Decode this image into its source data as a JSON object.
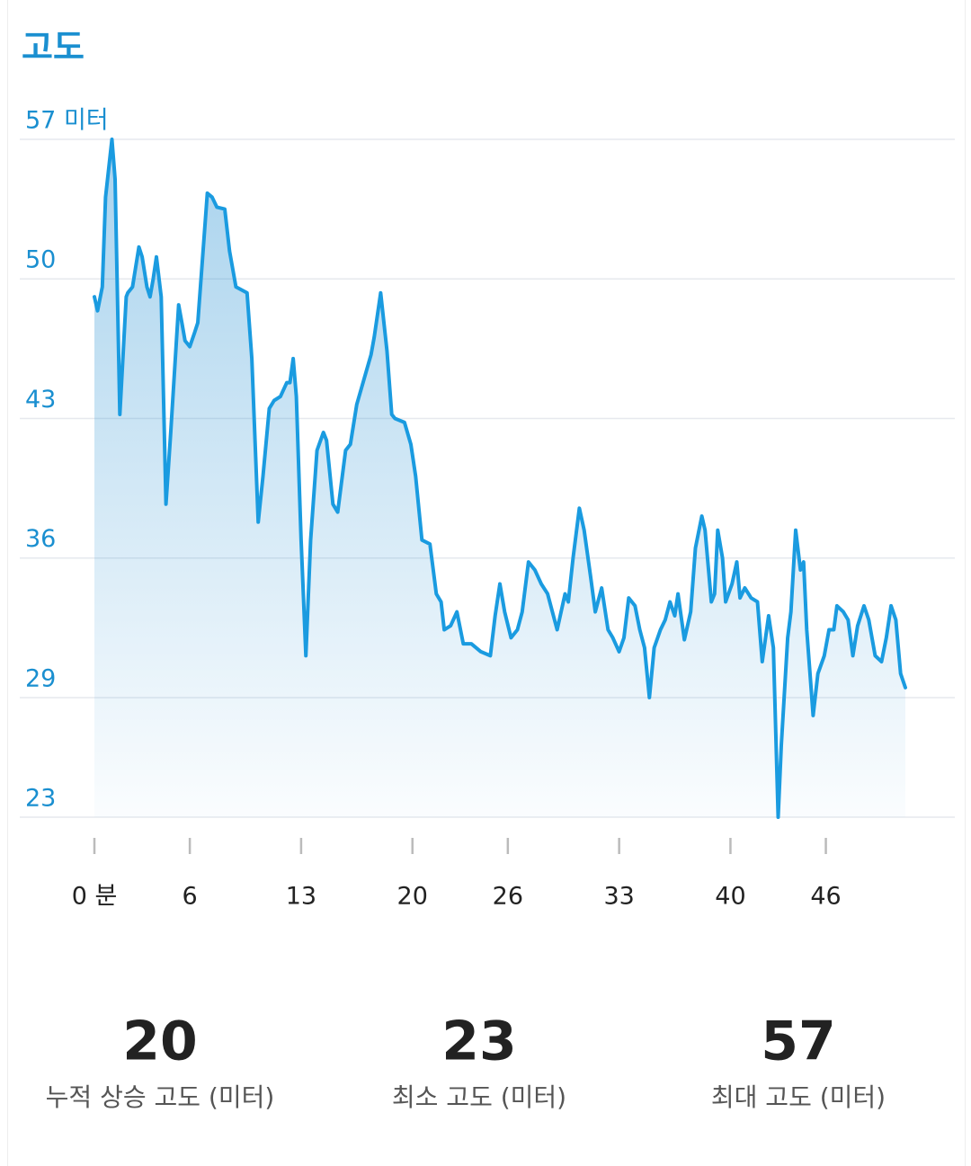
{
  "chart_data": {
    "type": "area",
    "title": "고도",
    "color": "#1a9be0",
    "grid": true,
    "x": [
      0,
      0.2,
      0.5,
      0.7,
      1.1,
      1.3,
      1.6,
      2.0,
      2.1,
      2.4,
      2.8,
      3.0,
      3.3,
      3.5,
      3.7,
      3.9,
      4.2,
      4.5,
      4.8,
      5.3,
      5.5,
      5.7,
      6.0,
      6.3,
      6.5,
      7.1,
      7.4,
      7.7,
      8.2,
      8.5,
      8.9,
      9.6,
      9.9,
      10.3,
      10.6,
      11.0,
      11.3,
      11.7,
      12.1,
      12.3,
      12.5,
      12.7,
      13.0,
      13.3,
      13.6,
      14.0,
      14.4,
      14.6,
      15.0,
      15.3,
      15.8,
      16.1,
      16.5,
      17.0,
      17.4,
      17.6,
      18.0,
      18.4,
      18.7,
      18.9,
      19.5,
      19.9,
      20.2,
      20.6,
      21.1,
      21.5,
      21.8,
      22.0,
      22.4,
      22.8,
      23.2,
      23.7,
      24.3,
      24.9,
      25.2,
      25.5,
      25.8,
      26.2,
      26.6,
      26.9,
      27.3,
      27.7,
      28.1,
      28.5,
      28.8,
      29.1,
      29.6,
      29.8,
      30.1,
      30.5,
      30.8,
      31.2,
      31.5,
      31.9,
      32.3,
      32.6,
      33.0,
      33.3,
      33.6,
      34.0,
      34.3,
      34.6,
      34.9,
      35.2,
      35.6,
      35.9,
      36.2,
      36.5,
      36.7,
      37.1,
      37.5,
      37.8,
      38.2,
      38.4,
      38.8,
      39.0,
      39.2,
      39.5,
      39.7,
      40.1,
      40.4,
      40.6,
      40.9,
      41.3,
      41.7,
      42.0,
      42.4,
      42.7,
      43.0,
      43.2,
      43.6,
      43.8,
      44.1,
      44.4,
      44.6,
      44.8,
      45.2,
      45.5,
      45.9,
      46.2,
      46.5,
      46.7,
      47.1,
      47.4,
      47.7,
      48.0,
      48.4,
      48.7,
      49.1,
      49.5,
      49.8,
      50.1,
      50.4,
      50.7,
      51.0
    ],
    "values": [
      49.1,
      48.4,
      49.6,
      54.1,
      57,
      55.0,
      43.2,
      49.1,
      49.3,
      49.6,
      51.6,
      51.1,
      49.6,
      49.1,
      50.0,
      51.1,
      49.1,
      38.7,
      42.3,
      48.7,
      47.8,
      46.9,
      46.6,
      47.3,
      47.8,
      54.3,
      54.1,
      53.6,
      53.5,
      51.4,
      49.6,
      49.3,
      46.0,
      37.8,
      40.1,
      43.5,
      43.9,
      44.1,
      44.8,
      44.8,
      46.0,
      44.1,
      36.9,
      31.1,
      36.9,
      41.4,
      42.3,
      41.9,
      38.7,
      38.3,
      41.4,
      41.7,
      43.7,
      45.1,
      46.2,
      47.1,
      49.3,
      46.4,
      43.2,
      43.0,
      42.8,
      41.7,
      40.1,
      36.9,
      36.7,
      34.2,
      33.8,
      32.4,
      32.6,
      33.3,
      31.7,
      31.7,
      31.3,
      31.1,
      33.1,
      34.7,
      33.3,
      32.0,
      32.4,
      33.3,
      35.8,
      35.4,
      34.7,
      34.2,
      33.3,
      32.4,
      34.2,
      33.8,
      36.0,
      38.5,
      37.4,
      35.1,
      33.3,
      34.5,
      32.4,
      32.0,
      31.3,
      32.0,
      34.0,
      33.6,
      32.4,
      31.5,
      29.0,
      31.5,
      32.4,
      32.9,
      33.8,
      33.1,
      34.2,
      31.9,
      33.3,
      36.5,
      38.1,
      37.4,
      33.8,
      34.2,
      37.4,
      36.0,
      33.8,
      34.7,
      35.8,
      34.0,
      34.5,
      34.0,
      33.8,
      30.8,
      33.1,
      31.5,
      23.0,
      26.6,
      32.0,
      33.3,
      37.4,
      35.4,
      35.8,
      32.4,
      28.1,
      30.2,
      31.1,
      32.4,
      32.4,
      33.6,
      33.3,
      32.9,
      31.1,
      32.6,
      33.6,
      32.9,
      31.1,
      30.8,
      32.0,
      33.6,
      32.9,
      30.2,
      29.5
    ],
    "xlim": [
      0,
      51
    ],
    "xticks": [
      {
        "value": 0,
        "label": "0 분"
      },
      6,
      13,
      20,
      26,
      33,
      40,
      46
    ],
    "ylim": [
      23,
      57
    ],
    "yticks": [
      {
        "value": 57,
        "label": "57 미터"
      },
      50,
      43,
      36,
      29,
      23
    ]
  },
  "stats": [
    {
      "value": 20,
      "label": "누적 상승 고도 (미터)"
    },
    {
      "value": 23,
      "label": "최소 고도 (미터)"
    },
    {
      "value": 57,
      "label": "최대 고도 (미터)"
    }
  ]
}
